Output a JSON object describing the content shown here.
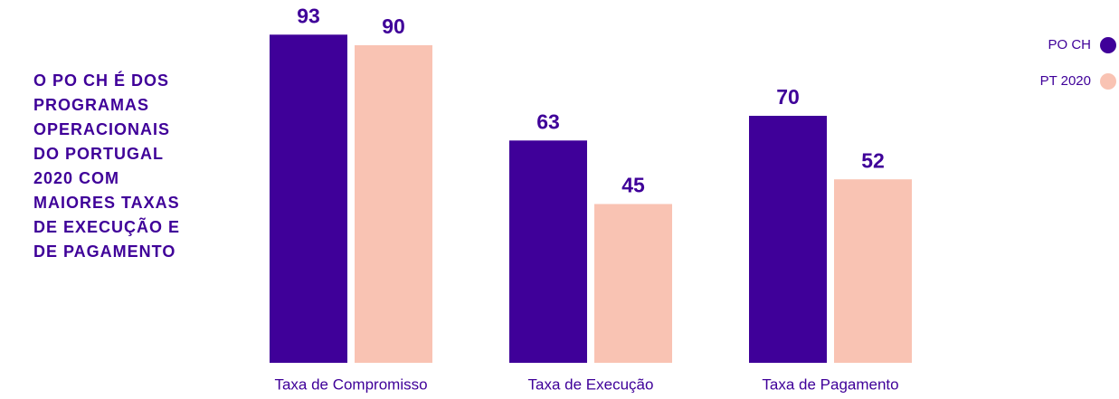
{
  "chart_data": {
    "type": "bar",
    "title": "O PO CH É DOS PROGRAMAS OPERACIONAIS DO PORTUGAL 2020 COM MAIORES TAXAS DE EXECUÇÃO E DE PAGAMENTO",
    "categories": [
      "Taxa de Compromisso",
      "Taxa de Execução",
      "Taxa de Pagamento"
    ],
    "series": [
      {
        "name": "PO CH",
        "color": "#3f0099",
        "values": [
          93,
          63,
          70
        ]
      },
      {
        "name": "PT 2020",
        "color": "#f9c3b3",
        "values": [
          90,
          45,
          52
        ]
      }
    ],
    "ylim": [
      0,
      100
    ],
    "legend": "top-right"
  }
}
